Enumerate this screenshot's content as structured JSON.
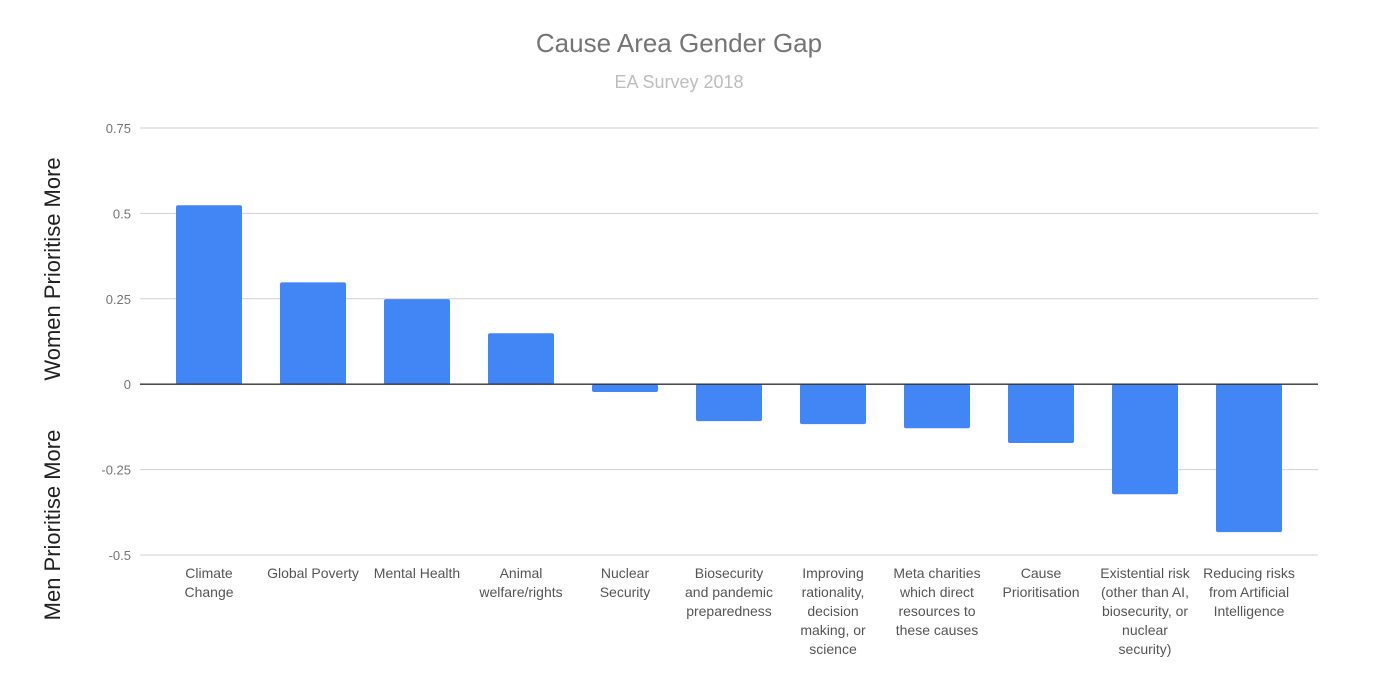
{
  "chart_data": {
    "type": "bar",
    "title": "Cause Area Gender Gap",
    "subtitle": "EA Survey 2018",
    "ylabel_top": "Women Prioritise More",
    "ylabel_bottom": "Men Prioritise More",
    "xlabel": "",
    "ylim": [
      -0.5,
      0.75
    ],
    "yticks": [
      0.75,
      0.5,
      0.25,
      0,
      -0.25,
      -0.5
    ],
    "ytick_labels": [
      "0.75",
      "0.5",
      "0.25",
      "0",
      "-0.25",
      "-0.5"
    ],
    "grid": true,
    "bar_color": "#4285f4",
    "categories": [
      [
        "Climate",
        "Change"
      ],
      [
        "Global Poverty"
      ],
      [
        "Mental Health"
      ],
      [
        "Animal",
        "welfare/rights"
      ],
      [
        "Nuclear",
        "Security"
      ],
      [
        "Biosecurity",
        "and pandemic",
        "preparedness"
      ],
      [
        "Improving",
        "rationality,",
        "decision",
        "making, or",
        "science"
      ],
      [
        "Meta charities",
        "which direct",
        "resources to",
        "these causes"
      ],
      [
        "Cause",
        "Prioritisation"
      ],
      [
        "Existential risk",
        "(other than AI,",
        "biosecurity, or",
        "nuclear",
        "security)"
      ],
      [
        "Reducing risks",
        "from Artificial",
        "Intelligence"
      ]
    ],
    "values": [
      0.524,
      0.298,
      0.249,
      0.149,
      -0.023,
      -0.108,
      -0.117,
      -0.129,
      -0.172,
      -0.322,
      -0.433
    ]
  }
}
